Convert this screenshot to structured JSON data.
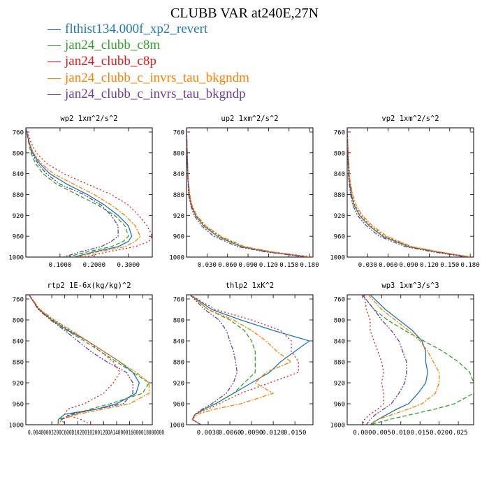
{
  "title": "CLUBB VAR at240E,27N",
  "legend": [
    {
      "name": "flthist134.000f_xp2_revert",
      "color": "#1f78b4",
      "dash": ""
    },
    {
      "name": "jan24_clubb_c8m",
      "color": "#33a02c",
      "dash": "6,3"
    },
    {
      "name": "jan24_clubb_c8p",
      "color": "#e31a1c",
      "dash": "2,3"
    },
    {
      "name": "jan24_clubb_c_invrs_tau_bkgndm",
      "color": "#ff7f00",
      "dash": "6,2,2,2"
    },
    {
      "name": "jan24_clubb_c_invrs_tau_bkgndp",
      "color": "#6a3d9a",
      "dash": "6,2,2,2,2,2"
    }
  ],
  "chart_data": [
    {
      "type": "line",
      "title": "wp2  1xm^2/s^2",
      "xlim": [
        0,
        0.37
      ],
      "xticks": [
        "0.1000",
        "0.2000",
        "0.3000"
      ],
      "xtick_values": [
        0.1,
        0.2,
        0.3
      ],
      "ylim": [
        1000,
        752
      ],
      "yticks": [
        760,
        800,
        840,
        880,
        920,
        960,
        1000
      ],
      "y": [
        752,
        780,
        800,
        820,
        840,
        860,
        880,
        900,
        920,
        940,
        960,
        970,
        980,
        990,
        1000
      ],
      "series": [
        {
          "name": "flthist134.000f_xp2_revert",
          "values": [
            0.0,
            0.01,
            0.02,
            0.04,
            0.07,
            0.12,
            0.18,
            0.23,
            0.27,
            0.3,
            0.31,
            0.3,
            0.27,
            0.2,
            0.14
          ]
        },
        {
          "name": "jan24_clubb_c8m",
          "values": [
            0.0,
            0.008,
            0.015,
            0.028,
            0.05,
            0.09,
            0.15,
            0.21,
            0.26,
            0.29,
            0.3,
            0.285,
            0.25,
            0.18,
            0.12
          ]
        },
        {
          "name": "jan24_clubb_c8p",
          "values": [
            0.0,
            0.015,
            0.03,
            0.06,
            0.11,
            0.18,
            0.25,
            0.3,
            0.33,
            0.355,
            0.37,
            0.36,
            0.32,
            0.24,
            0.17
          ]
        },
        {
          "name": "jan24_clubb_c_invrs_tau_bkgndm",
          "values": [
            0.0,
            0.01,
            0.022,
            0.045,
            0.08,
            0.14,
            0.2,
            0.25,
            0.29,
            0.32,
            0.335,
            0.32,
            0.29,
            0.21,
            0.15
          ]
        },
        {
          "name": "jan24_clubb_c_invrs_tau_bkgndp",
          "values": [
            0.0,
            0.009,
            0.018,
            0.035,
            0.06,
            0.1,
            0.17,
            0.22,
            0.25,
            0.27,
            0.27,
            0.25,
            0.22,
            0.16,
            0.11
          ]
        }
      ]
    },
    {
      "type": "line",
      "title": "up2  1xm^2/s^2",
      "xlim": [
        0,
        0.185
      ],
      "xticks": [
        "0.030",
        "0.060",
        "0.090",
        "0.120",
        "0.150",
        "0.180"
      ],
      "xtick_values": [
        0.03,
        0.06,
        0.09,
        0.12,
        0.15,
        0.18
      ],
      "ylim": [
        1000,
        752
      ],
      "yticks": [
        760,
        800,
        840,
        880,
        920,
        960,
        1000
      ],
      "y": [
        752,
        800,
        850,
        880,
        900,
        920,
        940,
        960,
        980,
        990,
        1000
      ],
      "series": [
        {
          "name": "flthist134.000f_xp2_revert",
          "values": [
            0.0,
            0.001,
            0.002,
            0.004,
            0.007,
            0.013,
            0.025,
            0.045,
            0.08,
            0.12,
            0.18
          ]
        },
        {
          "name": "jan24_clubb_c8m",
          "values": [
            0.0,
            0.001,
            0.002,
            0.004,
            0.007,
            0.013,
            0.025,
            0.045,
            0.08,
            0.12,
            0.18
          ]
        },
        {
          "name": "jan24_clubb_c8p",
          "values": [
            0.0,
            0.001,
            0.002,
            0.004,
            0.007,
            0.014,
            0.027,
            0.048,
            0.084,
            0.125,
            0.185
          ]
        },
        {
          "name": "jan24_clubb_c_invrs_tau_bkgndm",
          "values": [
            0.0,
            0.001,
            0.0025,
            0.005,
            0.008,
            0.015,
            0.028,
            0.05,
            0.085,
            0.125,
            0.18
          ]
        },
        {
          "name": "jan24_clubb_c_invrs_tau_bkgndp",
          "values": [
            0.0,
            0.001,
            0.002,
            0.003,
            0.006,
            0.011,
            0.022,
            0.04,
            0.075,
            0.115,
            0.175
          ]
        }
      ]
    },
    {
      "type": "line",
      "title": "vp2  1xm^2/s^2",
      "xlim": [
        0,
        0.185
      ],
      "xticks": [
        "0.030",
        "0.060",
        "0.090",
        "0.120",
        "0.150",
        "0.180"
      ],
      "xtick_values": [
        0.03,
        0.06,
        0.09,
        0.12,
        0.15,
        0.18
      ],
      "ylim": [
        1000,
        752
      ],
      "yticks": [
        760,
        800,
        840,
        880,
        920,
        960,
        1000
      ],
      "y": [
        752,
        800,
        850,
        880,
        900,
        920,
        940,
        960,
        980,
        990,
        1000
      ],
      "series": [
        {
          "name": "flthist134.000f_xp2_revert",
          "values": [
            0.0,
            0.001,
            0.003,
            0.006,
            0.01,
            0.018,
            0.032,
            0.052,
            0.09,
            0.13,
            0.18
          ]
        },
        {
          "name": "jan24_clubb_c8m",
          "values": [
            0.0,
            0.001,
            0.003,
            0.006,
            0.01,
            0.018,
            0.032,
            0.052,
            0.09,
            0.13,
            0.18
          ]
        },
        {
          "name": "jan24_clubb_c8p",
          "values": [
            0.0,
            0.001,
            0.003,
            0.007,
            0.011,
            0.02,
            0.034,
            0.055,
            0.093,
            0.133,
            0.183
          ]
        },
        {
          "name": "jan24_clubb_c_invrs_tau_bkgndm",
          "values": [
            0.0,
            0.0015,
            0.004,
            0.008,
            0.013,
            0.022,
            0.037,
            0.058,
            0.095,
            0.135,
            0.18
          ]
        },
        {
          "name": "jan24_clubb_c_invrs_tau_bkgndp",
          "values": [
            0.0,
            0.001,
            0.002,
            0.005,
            0.008,
            0.015,
            0.028,
            0.047,
            0.085,
            0.125,
            0.175
          ]
        }
      ]
    },
    {
      "type": "line",
      "title": "rtp2  1E-6x(kg/kg)^2",
      "xlim": [
        0,
        0.0195
      ],
      "xticks": [
        "0.004",
        "0.006",
        "0.008",
        "0.010",
        "0.012",
        "0.014",
        "0.016",
        "0.018"
      ],
      "xtick_values": [
        0.004,
        0.006,
        0.008,
        0.01,
        0.012,
        0.014,
        0.016,
        0.018
      ],
      "xtick_labels_overlap": "0.00400003200C600D1020010200120DA14000016000018000000",
      "ylim": [
        1000,
        752
      ],
      "yticks": [
        760,
        800,
        840,
        880,
        920,
        960,
        1000
      ],
      "y": [
        752,
        780,
        800,
        820,
        840,
        860,
        880,
        900,
        920,
        940,
        960,
        970,
        980,
        990,
        1000
      ],
      "series": [
        {
          "name": "flthist134.000f_xp2_revert",
          "values": [
            0.0005,
            0.002,
            0.004,
            0.0065,
            0.0095,
            0.012,
            0.0145,
            0.0165,
            0.0175,
            0.017,
            0.014,
            0.011,
            0.006,
            0.005,
            0.005
          ]
        },
        {
          "name": "jan24_clubb_c8m",
          "values": [
            0.0005,
            0.002,
            0.004,
            0.0063,
            0.009,
            0.0115,
            0.014,
            0.0165,
            0.019,
            0.018,
            0.013,
            0.01,
            0.0075,
            0.005,
            0.005
          ]
        },
        {
          "name": "jan24_clubb_c8p",
          "values": [
            0.0005,
            0.002,
            0.0042,
            0.0068,
            0.0095,
            0.0115,
            0.0135,
            0.0145,
            0.0135,
            0.012,
            0.009,
            0.0065,
            0.006,
            0.0085,
            0.01
          ]
        },
        {
          "name": "jan24_clubb_c_invrs_tau_bkgndm",
          "values": [
            0.0005,
            0.0022,
            0.0044,
            0.007,
            0.0095,
            0.012,
            0.0145,
            0.017,
            0.019,
            0.019,
            0.016,
            0.012,
            0.008,
            0.0055,
            0.005
          ]
        },
        {
          "name": "jan24_clubb_c_invrs_tau_bkgndp",
          "values": [
            0.0005,
            0.0019,
            0.0038,
            0.006,
            0.008,
            0.01,
            0.0125,
            0.0155,
            0.0165,
            0.0165,
            0.015,
            0.011,
            0.007,
            0.0055,
            0.006
          ]
        }
      ]
    },
    {
      "type": "line",
      "title": "thlp2  1xK^2",
      "xlim": [
        0,
        0.0175
      ],
      "xticks": [
        "0.0030",
        "0.0060",
        "0.0090",
        "0.0120",
        "0.0150"
      ],
      "xtick_values": [
        0.003,
        0.006,
        0.009,
        0.012,
        0.015
      ],
      "ylim": [
        1000,
        752
      ],
      "yticks": [
        760,
        800,
        840,
        880,
        920,
        960,
        1000
      ],
      "y": [
        752,
        780,
        800,
        820,
        840,
        860,
        880,
        900,
        920,
        940,
        960,
        970,
        980,
        990,
        1000
      ],
      "series": [
        {
          "name": "flthist134.000f_xp2_revert",
          "values": [
            0.0005,
            0.0035,
            0.0075,
            0.012,
            0.017,
            0.015,
            0.013,
            0.0115,
            0.009,
            0.0065,
            0.004,
            0.0025,
            0.0012,
            0.0008,
            0.002
          ]
        },
        {
          "name": "jan24_clubb_c8m",
          "values": [
            0.0005,
            0.003,
            0.006,
            0.008,
            0.009,
            0.0095,
            0.0095,
            0.0095,
            0.008,
            0.0065,
            0.004,
            0.0025,
            0.0012,
            0.0008,
            0.002
          ]
        },
        {
          "name": "jan24_clubb_c8p",
          "values": [
            0.0005,
            0.004,
            0.009,
            0.013,
            0.0145,
            0.0145,
            0.0155,
            0.0155,
            0.0115,
            0.0075,
            0.0045,
            0.003,
            0.0012,
            0.0008,
            0.002
          ]
        },
        {
          "name": "jan24_clubb_c_invrs_tau_bkgndm",
          "values": [
            0.0005,
            0.003,
            0.0065,
            0.009,
            0.011,
            0.0125,
            0.0145,
            0.011,
            0.0095,
            0.012,
            0.0075,
            0.004,
            0.0015,
            0.0008,
            0.002
          ]
        },
        {
          "name": "jan24_clubb_c_invrs_tau_bkgndp",
          "values": [
            0.0005,
            0.0025,
            0.0045,
            0.0055,
            0.006,
            0.0065,
            0.0068,
            0.007,
            0.0065,
            0.0055,
            0.0035,
            0.0022,
            0.0012,
            0.0008,
            0.002
          ]
        }
      ]
    },
    {
      "type": "line",
      "title": "wp3  1xm^3/s^3",
      "xlim": [
        -0.004,
        0.029
      ],
      "xticks": [
        "0.000",
        "0.005",
        "0.010",
        "0.015",
        "0.020",
        "0.025"
      ],
      "xtick_values": [
        0.0,
        0.005,
        0.01,
        0.015,
        0.02,
        0.025
      ],
      "ylim": [
        1000,
        752
      ],
      "yticks": [
        760,
        800,
        840,
        880,
        920,
        960,
        1000
      ],
      "y": [
        752,
        780,
        800,
        820,
        840,
        860,
        880,
        900,
        920,
        940,
        960,
        970,
        980,
        990,
        1000
      ],
      "series": [
        {
          "name": "flthist134.000f_xp2_revert",
          "values": [
            0.002,
            0.006,
            0.0095,
            0.013,
            0.0155,
            0.0165,
            0.0165,
            0.017,
            0.0165,
            0.0145,
            0.012,
            0.009,
            0.0065,
            0.004,
            0.002
          ]
        },
        {
          "name": "jan24_clubb_c8m",
          "values": [
            0.0,
            0.003,
            0.0065,
            0.011,
            0.016,
            0.021,
            0.025,
            0.028,
            0.029,
            0.029,
            0.024,
            0.019,
            0.013,
            0.007,
            0.002
          ]
        },
        {
          "name": "jan24_clubb_c8p",
          "values": [
            0.0005,
            0.001,
            0.002,
            0.002,
            0.003,
            0.004,
            0.005,
            0.0055,
            0.005,
            0.0055,
            0.0055,
            0.004,
            0.002,
            0.0005,
            0.0
          ]
        },
        {
          "name": "jan24_clubb_c_invrs_tau_bkgndm",
          "values": [
            0.0015,
            0.005,
            0.0085,
            0.012,
            0.015,
            0.017,
            0.0185,
            0.02,
            0.02,
            0.019,
            0.0155,
            0.012,
            0.008,
            0.004,
            0.0015
          ]
        },
        {
          "name": "jan24_clubb_c_invrs_tau_bkgndp",
          "values": [
            0.0,
            0.003,
            0.005,
            0.0075,
            0.0095,
            0.0105,
            0.0115,
            0.0115,
            0.011,
            0.0095,
            0.0075,
            0.0055,
            0.0035,
            0.002,
            0.001
          ]
        }
      ]
    }
  ]
}
